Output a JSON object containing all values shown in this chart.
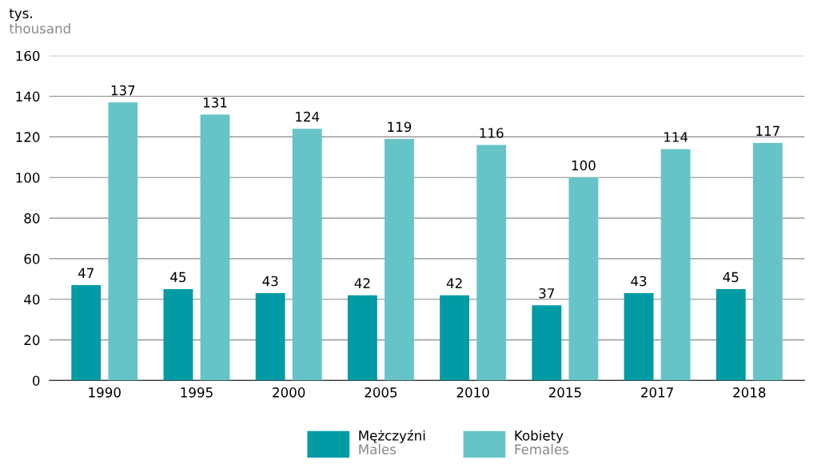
{
  "chart_data": {
    "type": "bar",
    "ylabel": "tys.\nthousand",
    "categories": [
      "1990",
      "1995",
      "2000",
      "2005",
      "2010",
      "2015",
      "2017",
      "2018"
    ],
    "series": [
      {
        "name": "Mężczyźni\nMales",
        "color": "#009ba5",
        "values": [
          47,
          45,
          43,
          42,
          42,
          37,
          43,
          45
        ]
      },
      {
        "name": "Kobiety\nFemales",
        "color": "#66c4c9",
        "values": [
          137,
          131,
          124,
          119,
          116,
          100,
          114,
          117
        ]
      }
    ],
    "ylim": [
      0,
      160
    ],
    "yticks": [
      0,
      20,
      40,
      60,
      80,
      100,
      120,
      140,
      160
    ],
    "grid": "y",
    "data_labels": true,
    "legend": "bottom"
  }
}
